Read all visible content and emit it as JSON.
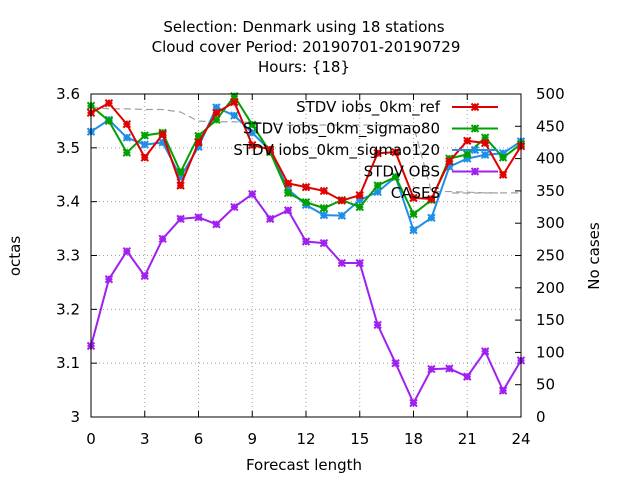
{
  "title_lines": [
    "Selection: Denmark using    18 stations",
    "Cloud cover   Period: 20190701-20190729",
    "Hours: {18}"
  ],
  "chart_data": {
    "type": "line",
    "xlabel": "Forecast length",
    "ylabel": "octas",
    "y2label": "No cases",
    "xlim": [
      0,
      24
    ],
    "ylim": [
      3.0,
      3.6
    ],
    "y2lim": [
      0,
      500
    ],
    "xticks": [
      0,
      3,
      6,
      9,
      12,
      15,
      18,
      21,
      24
    ],
    "yticks": [
      3.0,
      3.1,
      3.2,
      3.3,
      3.4,
      3.5,
      3.6
    ],
    "ytick_labels": [
      "3",
      "3.1",
      "3.2",
      "3.3",
      "3.4",
      "3.5",
      "3.6"
    ],
    "y2ticks": [
      0,
      50,
      100,
      150,
      200,
      250,
      300,
      350,
      400,
      450,
      500
    ],
    "grid": true,
    "legend_position": "top-right",
    "x": [
      0,
      1,
      2,
      3,
      4,
      5,
      6,
      7,
      8,
      9,
      10,
      11,
      12,
      13,
      14,
      15,
      16,
      17,
      18,
      19,
      20,
      21,
      22,
      23,
      24
    ],
    "series": [
      {
        "name": "STDV iobs_0km_ref",
        "axis": "left",
        "color": "#e00000",
        "marker": "x",
        "values": [
          3.565,
          3.583,
          3.544,
          3.482,
          3.525,
          3.43,
          3.51,
          3.565,
          3.585,
          3.505,
          3.497,
          3.434,
          3.427,
          3.42,
          3.402,
          3.412,
          3.49,
          3.492,
          3.407,
          3.405,
          3.475,
          3.513,
          3.509,
          3.45,
          3.503
        ]
      },
      {
        "name": "STDV iobs_0km_sigmao80",
        "axis": "left",
        "color": "#00a000",
        "marker": "x",
        "values": [
          3.578,
          3.55,
          3.491,
          3.523,
          3.528,
          3.455,
          3.522,
          3.552,
          3.596,
          3.543,
          3.492,
          3.416,
          3.399,
          3.388,
          3.403,
          3.39,
          3.43,
          3.446,
          3.377,
          3.403,
          3.48,
          3.488,
          3.519,
          3.482,
          3.507
        ]
      },
      {
        "name": "STDV iobs_0km_sigmao120",
        "axis": "left",
        "color": "#1e8fe6",
        "marker": "x",
        "values": [
          3.53,
          3.552,
          3.519,
          3.506,
          3.51,
          3.446,
          3.502,
          3.575,
          3.56,
          3.528,
          3.495,
          3.423,
          3.394,
          3.375,
          3.374,
          3.403,
          3.418,
          3.446,
          3.347,
          3.37,
          3.465,
          3.48,
          3.487,
          3.49,
          3.512
        ]
      },
      {
        "name": "STDV OBS",
        "axis": "left",
        "color": "#a020f0",
        "marker": "x",
        "values": [
          3.132,
          3.256,
          3.308,
          3.262,
          3.331,
          3.368,
          3.371,
          3.358,
          3.39,
          3.414,
          3.368,
          3.384,
          3.326,
          3.323,
          3.286,
          3.286,
          3.171,
          3.1,
          3.026,
          3.089,
          3.09,
          3.075,
          3.122,
          3.049,
          3.105
        ]
      },
      {
        "name": "CASES",
        "axis": "right",
        "color": "#a0a0a0",
        "dashed": true,
        "values": [
          480,
          477,
          477,
          476,
          476,
          472,
          458,
          457,
          457,
          456,
          454,
          452,
          452,
          452,
          452,
          452,
          452,
          452,
          451,
          349,
          349,
          348,
          347,
          347,
          347
        ]
      }
    ]
  }
}
